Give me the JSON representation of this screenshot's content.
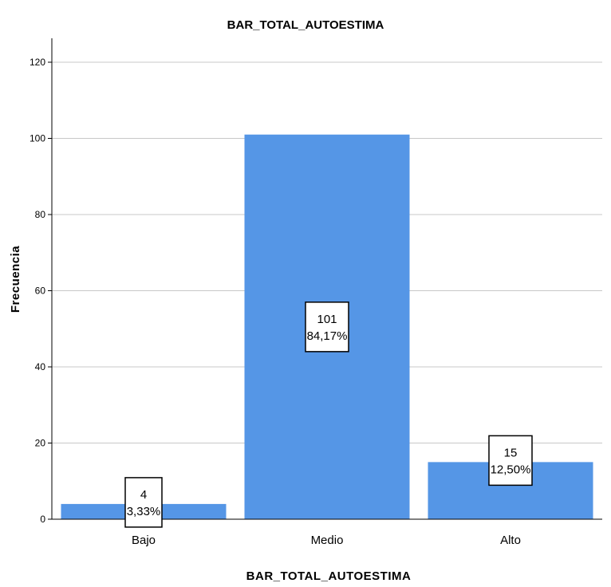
{
  "chart_data": {
    "type": "bar",
    "title": "BAR_TOTAL_AUTOESTIMA",
    "xlabel": "BAR_TOTAL_AUTOESTIMA",
    "ylabel": "Frecuencia",
    "categories": [
      "Bajo",
      "Medio",
      "Alto"
    ],
    "values": [
      4,
      101,
      15
    ],
    "data_labels": [
      {
        "count": "4",
        "percent": "3,33%"
      },
      {
        "count": "101",
        "percent": "84,17%"
      },
      {
        "count": "15",
        "percent": "12,50%"
      }
    ],
    "ylim": [
      0,
      125
    ],
    "yticks": [
      0,
      20,
      40,
      60,
      80,
      100,
      120
    ],
    "grid": true,
    "bar_color": "#5596e6",
    "legend": "none"
  }
}
